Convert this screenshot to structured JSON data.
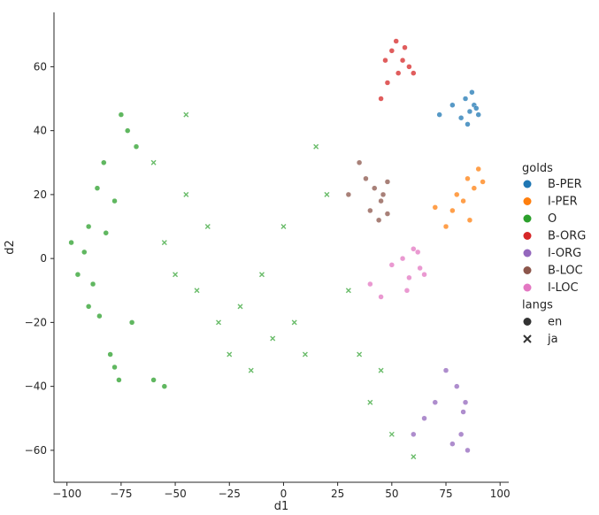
{
  "chart_data": {
    "type": "scatter",
    "title": "",
    "xlabel": "d1",
    "ylabel": "d2",
    "xlim": [
      -106,
      104
    ],
    "ylim": [
      -70,
      77
    ],
    "xticks": [
      -100,
      -75,
      -50,
      -25,
      0,
      25,
      50,
      75,
      100
    ],
    "yticks": [
      -60,
      -40,
      -20,
      0,
      20,
      40,
      60
    ],
    "xtick_labels": [
      "−100",
      "−75",
      "−50",
      "−25",
      "0",
      "25",
      "50",
      "75",
      "100"
    ],
    "ytick_labels": [
      "−60",
      "−40",
      "−20",
      "0",
      "20",
      "40",
      "60"
    ],
    "grid": false,
    "legend_position": "right",
    "legend": {
      "hue_title": "golds",
      "hue": [
        {
          "label": "B-PER",
          "color": "#1f77b4"
        },
        {
          "label": "I-PER",
          "color": "#ff7f0e"
        },
        {
          "label": "O",
          "color": "#2ca02c"
        },
        {
          "label": "B-ORG",
          "color": "#d62728"
        },
        {
          "label": "I-ORG",
          "color": "#9467bd"
        },
        {
          "label": "B-LOC",
          "color": "#8c564b"
        },
        {
          "label": "I-LOC",
          "color": "#e377c2"
        }
      ],
      "style_title": "langs",
      "style": [
        {
          "label": "en",
          "marker": "circle"
        },
        {
          "label": "ja",
          "marker": "x"
        }
      ]
    },
    "clusters": [
      {
        "gold": "O",
        "lang": "en",
        "points": [
          [
            -90,
            10
          ],
          [
            -92,
            2
          ],
          [
            -88,
            -8
          ],
          [
            -85,
            -18
          ],
          [
            -80,
            -30
          ],
          [
            -78,
            -34
          ],
          [
            -75,
            45
          ],
          [
            -72,
            40
          ],
          [
            -95,
            -5
          ],
          [
            -98,
            5
          ],
          [
            -86,
            22
          ],
          [
            -83,
            30
          ],
          [
            -78,
            18
          ],
          [
            -70,
            -20
          ],
          [
            -60,
            -38
          ],
          [
            -55,
            -40
          ],
          [
            -82,
            8
          ],
          [
            -90,
            -15
          ],
          [
            -76,
            -38
          ],
          [
            -68,
            35
          ]
        ]
      },
      {
        "gold": "O",
        "lang": "ja",
        "points": [
          [
            -40,
            -10
          ],
          [
            -30,
            -20
          ],
          [
            -20,
            -15
          ],
          [
            -10,
            -5
          ],
          [
            0,
            10
          ],
          [
            -45,
            20
          ],
          [
            -35,
            10
          ],
          [
            -25,
            -30
          ],
          [
            -15,
            -35
          ],
          [
            -5,
            -25
          ],
          [
            5,
            -20
          ],
          [
            10,
            -30
          ],
          [
            -50,
            -5
          ],
          [
            -55,
            5
          ],
          [
            -60,
            30
          ],
          [
            -45,
            45
          ],
          [
            15,
            35
          ],
          [
            20,
            20
          ],
          [
            30,
            -10
          ],
          [
            35,
            -30
          ],
          [
            40,
            -45
          ],
          [
            50,
            -55
          ],
          [
            60,
            -62
          ],
          [
            45,
            -35
          ]
        ]
      },
      {
        "gold": "B-PER",
        "lang": "en",
        "points": [
          [
            84,
            50
          ],
          [
            86,
            46
          ],
          [
            88,
            48
          ],
          [
            90,
            45
          ],
          [
            82,
            44
          ],
          [
            87,
            52
          ],
          [
            89,
            47
          ],
          [
            85,
            42
          ],
          [
            78,
            48
          ],
          [
            72,
            45
          ]
        ]
      },
      {
        "gold": "I-PER",
        "lang": "en",
        "points": [
          [
            80,
            20
          ],
          [
            85,
            25
          ],
          [
            88,
            22
          ],
          [
            90,
            28
          ],
          [
            78,
            15
          ],
          [
            83,
            18
          ],
          [
            86,
            12
          ],
          [
            75,
            10
          ],
          [
            70,
            16
          ],
          [
            92,
            24
          ]
        ]
      },
      {
        "gold": "B-ORG",
        "lang": "en",
        "points": [
          [
            52,
            68
          ],
          [
            55,
            62
          ],
          [
            58,
            60
          ],
          [
            50,
            65
          ],
          [
            48,
            55
          ],
          [
            45,
            50
          ],
          [
            53,
            58
          ],
          [
            56,
            66
          ],
          [
            47,
            62
          ],
          [
            60,
            58
          ]
        ]
      },
      {
        "gold": "I-ORG",
        "lang": "en",
        "points": [
          [
            80,
            -40
          ],
          [
            84,
            -45
          ],
          [
            82,
            -55
          ],
          [
            85,
            -60
          ],
          [
            78,
            -58
          ],
          [
            70,
            -45
          ],
          [
            65,
            -50
          ],
          [
            60,
            -55
          ],
          [
            75,
            -35
          ],
          [
            83,
            -48
          ]
        ]
      },
      {
        "gold": "B-LOC",
        "lang": "en",
        "points": [
          [
            40,
            15
          ],
          [
            45,
            18
          ],
          [
            48,
            14
          ],
          [
            42,
            22
          ],
          [
            38,
            25
          ],
          [
            46,
            20
          ],
          [
            44,
            12
          ],
          [
            35,
            30
          ],
          [
            30,
            20
          ],
          [
            48,
            24
          ]
        ]
      },
      {
        "gold": "I-LOC",
        "lang": "en",
        "points": [
          [
            55,
            0
          ],
          [
            60,
            3
          ],
          [
            63,
            -3
          ],
          [
            58,
            -6
          ],
          [
            50,
            -2
          ],
          [
            45,
            -12
          ],
          [
            40,
            -8
          ],
          [
            62,
            2
          ],
          [
            57,
            -10
          ],
          [
            65,
            -5
          ]
        ]
      }
    ]
  }
}
